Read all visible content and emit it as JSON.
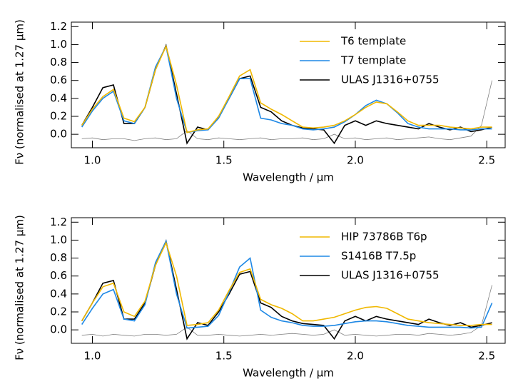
{
  "chart_data": [
    {
      "type": "line",
      "ylabel": "Fν (normalised at 1.27 μm)",
      "xlabel": "Wavelength / μm",
      "x": [
        0.96,
        1.0,
        1.04,
        1.08,
        1.12,
        1.16,
        1.2,
        1.24,
        1.28,
        1.32,
        1.36,
        1.4,
        1.44,
        1.48,
        1.52,
        1.56,
        1.6,
        1.64,
        1.68,
        1.72,
        1.76,
        1.8,
        1.84,
        1.88,
        1.92,
        1.96,
        2.0,
        2.04,
        2.08,
        2.12,
        2.16,
        2.2,
        2.24,
        2.28,
        2.32,
        2.36,
        2.4,
        2.44,
        2.48,
        2.52
      ],
      "xlim": [
        0.92,
        2.57
      ],
      "xticks": [
        {
          "value": 1.0,
          "label": "1.0"
        },
        1.5,
        {
          "value": 2.0,
          "label": "2.0"
        },
        2.5
      ],
      "ylim": [
        -0.15,
        1.25
      ],
      "yticks": [
        {
          "value": 0,
          "label": "0.0"
        },
        0.2,
        0.4,
        0.6,
        0.8,
        {
          "value": 1.0,
          "label": "1.0"
        },
        1.2
      ],
      "legend": "upper right",
      "series": [
        {
          "name": "T6 template",
          "color": "#f0b800",
          "values": [
            0.1,
            0.28,
            0.42,
            0.5,
            0.18,
            0.14,
            0.3,
            0.72,
            0.98,
            0.55,
            0.02,
            0.05,
            0.06,
            0.2,
            0.42,
            0.65,
            0.72,
            0.35,
            0.28,
            0.22,
            0.15,
            0.08,
            0.07,
            0.08,
            0.1,
            0.15,
            0.22,
            0.3,
            0.36,
            0.34,
            0.25,
            0.15,
            0.1,
            0.1,
            0.1,
            0.08,
            0.07,
            0.06,
            0.08,
            0.08
          ]
        },
        {
          "name": "T7 template",
          "color": "#1e88e5",
          "values": [
            0.08,
            0.26,
            0.4,
            0.48,
            0.15,
            0.12,
            0.3,
            0.75,
            0.98,
            0.4,
            0.02,
            0.04,
            0.05,
            0.18,
            0.4,
            0.62,
            0.62,
            0.18,
            0.16,
            0.12,
            0.1,
            0.06,
            0.05,
            0.06,
            0.08,
            0.14,
            0.22,
            0.32,
            0.38,
            0.34,
            0.24,
            0.12,
            0.08,
            0.06,
            0.06,
            0.06,
            0.05,
            0.05,
            0.06,
            0.06
          ]
        },
        {
          "name": "ULAS J1316+0755",
          "color": "#000000",
          "values": [
            0.1,
            0.3,
            0.52,
            0.55,
            0.12,
            0.12,
            0.3,
            0.72,
            0.99,
            0.45,
            -0.1,
            0.08,
            0.05,
            0.2,
            0.4,
            0.62,
            0.65,
            0.3,
            0.25,
            0.15,
            0.1,
            0.07,
            0.06,
            0.05,
            -0.1,
            0.1,
            0.15,
            0.1,
            0.15,
            0.12,
            0.1,
            0.08,
            0.06,
            0.12,
            0.08,
            0.05,
            0.08,
            0.03,
            0.05,
            0.08
          ]
        },
        {
          "color": "#808080",
          "values": [
            -0.05,
            -0.04,
            -0.06,
            -0.05,
            -0.05,
            -0.07,
            -0.05,
            -0.04,
            -0.06,
            -0.05,
            0.04,
            -0.05,
            -0.06,
            -0.04,
            -0.05,
            -0.06,
            -0.05,
            -0.04,
            -0.06,
            -0.05,
            -0.05,
            -0.04,
            -0.06,
            -0.05,
            0.0,
            -0.05,
            -0.04,
            -0.06,
            -0.05,
            -0.04,
            -0.06,
            -0.05,
            -0.04,
            -0.03,
            -0.05,
            -0.06,
            -0.04,
            -0.02,
            0.1,
            0.6
          ]
        }
      ]
    },
    {
      "type": "line",
      "ylabel": "Fν (normalised at 1.27 μm)",
      "xlabel": "Wavelength / μm",
      "x": [
        0.96,
        1.0,
        1.04,
        1.08,
        1.12,
        1.16,
        1.2,
        1.24,
        1.28,
        1.32,
        1.36,
        1.4,
        1.44,
        1.48,
        1.52,
        1.56,
        1.6,
        1.64,
        1.68,
        1.72,
        1.76,
        1.8,
        1.84,
        1.88,
        1.92,
        1.96,
        2.0,
        2.04,
        2.08,
        2.12,
        2.16,
        2.2,
        2.24,
        2.28,
        2.32,
        2.36,
        2.4,
        2.44,
        2.48,
        2.52
      ],
      "xlim": [
        0.92,
        2.57
      ],
      "xticks": [
        {
          "value": 1.0,
          "label": "1.0"
        },
        1.5,
        {
          "value": 2.0,
          "label": "2.0"
        },
        2.5
      ],
      "ylim": [
        -0.15,
        1.25
      ],
      "yticks": [
        {
          "value": 0,
          "label": "0.0"
        },
        0.2,
        0.4,
        0.6,
        0.8,
        {
          "value": 1.0,
          "label": "1.0"
        },
        1.2
      ],
      "legend": "upper right",
      "series": [
        {
          "name": "HIP 73786B T6p",
          "color": "#f0b800",
          "values": [
            0.1,
            0.3,
            0.48,
            0.52,
            0.2,
            0.15,
            0.32,
            0.72,
            0.97,
            0.6,
            0.05,
            0.06,
            0.08,
            0.22,
            0.44,
            0.64,
            0.68,
            0.34,
            0.28,
            0.24,
            0.18,
            0.1,
            0.1,
            0.12,
            0.14,
            0.18,
            0.22,
            0.25,
            0.26,
            0.24,
            0.18,
            0.12,
            0.1,
            0.08,
            0.07,
            0.06,
            0.05,
            0.05,
            0.06,
            0.06
          ]
        },
        {
          "name": "S1416B T7.5p",
          "color": "#1e88e5",
          "values": [
            0.06,
            0.24,
            0.4,
            0.45,
            0.12,
            0.1,
            0.28,
            0.75,
            0.99,
            0.4,
            0.02,
            0.03,
            0.04,
            0.16,
            0.42,
            0.7,
            0.8,
            0.22,
            0.14,
            0.1,
            0.08,
            0.05,
            0.04,
            0.04,
            0.05,
            0.07,
            0.09,
            0.1,
            0.1,
            0.09,
            0.07,
            0.05,
            0.04,
            0.03,
            0.03,
            0.03,
            0.03,
            0.02,
            0.03,
            0.3
          ]
        },
        {
          "name": "ULAS J1316+0755",
          "color": "#000000",
          "values": [
            0.1,
            0.3,
            0.52,
            0.55,
            0.12,
            0.12,
            0.3,
            0.72,
            0.99,
            0.45,
            -0.1,
            0.08,
            0.05,
            0.2,
            0.4,
            0.62,
            0.65,
            0.3,
            0.25,
            0.15,
            0.1,
            0.07,
            0.06,
            0.05,
            -0.1,
            0.1,
            0.15,
            0.1,
            0.15,
            0.12,
            0.1,
            0.08,
            0.06,
            0.12,
            0.08,
            0.05,
            0.08,
            0.03,
            0.05,
            0.08
          ]
        },
        {
          "color": "#808080",
          "values": [
            -0.06,
            -0.05,
            -0.07,
            -0.05,
            -0.06,
            -0.07,
            -0.05,
            -0.05,
            -0.06,
            -0.05,
            0.03,
            -0.06,
            -0.06,
            -0.05,
            -0.06,
            -0.07,
            -0.06,
            -0.05,
            -0.06,
            -0.05,
            -0.04,
            -0.05,
            -0.06,
            -0.05,
            0.0,
            -0.06,
            -0.05,
            -0.06,
            -0.07,
            -0.06,
            -0.05,
            -0.05,
            -0.06,
            -0.04,
            -0.05,
            -0.06,
            -0.05,
            -0.03,
            0.05,
            0.5
          ]
        }
      ]
    }
  ]
}
